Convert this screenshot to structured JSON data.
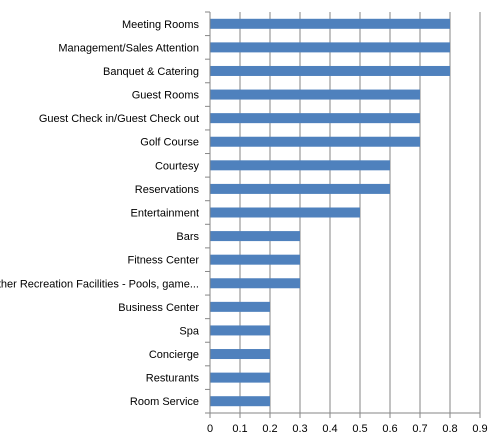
{
  "chart_data": {
    "type": "bar",
    "orientation": "horizontal",
    "categories": [
      "Meeting Rooms",
      "Management/Sales Attention",
      "Banquet & Catering",
      "Guest Rooms",
      "Guest Check in/Guest Check out",
      "Golf Course",
      "Courtesy",
      "Reservations",
      "Entertainment",
      "Bars",
      "Fitness Center",
      "Other Recreation Facilities - Pools, game...",
      "Business Center",
      "Spa",
      "Concierge",
      "Resturants",
      "Room Service"
    ],
    "values": [
      0.8,
      0.8,
      0.8,
      0.7,
      0.7,
      0.7,
      0.6,
      0.6,
      0.5,
      0.3,
      0.3,
      0.3,
      0.2,
      0.2,
      0.2,
      0.2,
      0.2
    ],
    "x_ticks": [
      "0",
      "0.1",
      "0.2",
      "0.3",
      "0.4",
      "0.5",
      "0.6",
      "0.7",
      "0.8",
      "0.9"
    ],
    "xlim": [
      0,
      0.9
    ],
    "grid": "vertical",
    "legend": "none",
    "bar_color": "#4f81bd",
    "grid_color": "#868686"
  }
}
